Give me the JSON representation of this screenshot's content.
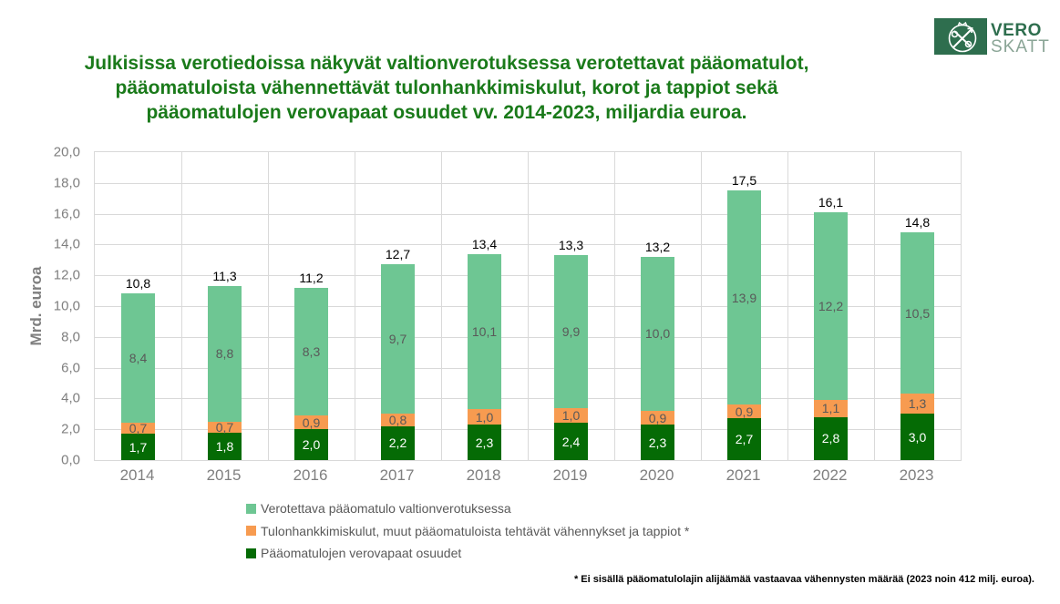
{
  "header": {
    "title_lines": [
      "Julkisissa verotiedoissa näkyvät valtionverotuksessa verotettavat pääomatulot,",
      "pääomatuloista vähennettävät tulonhankkimiskulut, korot ja tappiot sekä",
      "pääomatulojen verovapaat osuudet vv. 2014-2023, miljardia euroa."
    ],
    "title_color": "#1A7A1A",
    "logo": {
      "text_top": "VERO",
      "text_bottom": "SKATT",
      "box_color": "#2E6E4E"
    }
  },
  "chart_data": {
    "type": "bar",
    "stacked": true,
    "ylabel": "Mrd. euroa",
    "ylim": [
      0,
      20
    ],
    "ytick_step": 2,
    "ytick_labels": [
      "0,0",
      "2,0",
      "4,0",
      "6,0",
      "8,0",
      "10,0",
      "12,0",
      "14,0",
      "16,0",
      "18,0",
      "20,0"
    ],
    "categories": [
      "2014",
      "2015",
      "2016",
      "2017",
      "2018",
      "2019",
      "2020",
      "2021",
      "2022",
      "2023"
    ],
    "series": [
      {
        "name": "Verotettava pääomatulo valtionverotuksessa",
        "color": "#6EC693",
        "label_color": "#595959",
        "values": [
          8.4,
          8.8,
          8.3,
          9.7,
          10.1,
          9.9,
          10.0,
          13.9,
          12.2,
          10.5
        ],
        "labels": [
          "8,4",
          "8,8",
          "8,3",
          "9,7",
          "10,1",
          "9,9",
          "10,0",
          "13,9",
          "12,2",
          "10,5"
        ]
      },
      {
        "name": "Tulonhankkimiskulut, muut pääomatuloista tehtävät vähennykset ja tappiot *",
        "color": "#F79B50",
        "label_color": "#595959",
        "values": [
          0.7,
          0.7,
          0.9,
          0.8,
          1.0,
          1.0,
          0.9,
          0.9,
          1.1,
          1.3
        ],
        "labels": [
          "0,7",
          "0,7",
          "0,9",
          "0,8",
          "1,0",
          "1,0",
          "0,9",
          "0,9",
          "1,1",
          "1,3"
        ]
      },
      {
        "name": "Pääomatulojen verovapaat osuudet",
        "color": "#056B05",
        "label_color": "#FFFFFF",
        "values": [
          1.7,
          1.8,
          2.0,
          2.2,
          2.3,
          2.4,
          2.3,
          2.7,
          2.8,
          3.0
        ],
        "labels": [
          "1,7",
          "1,8",
          "2,0",
          "2,2",
          "2,3",
          "2,4",
          "2,3",
          "2,7",
          "2,8",
          "3,0"
        ]
      }
    ],
    "stack_order_bottom_to_top": [
      2,
      1,
      0
    ],
    "totals": [
      10.8,
      11.3,
      11.2,
      12.7,
      13.4,
      13.3,
      13.2,
      17.5,
      16.1,
      14.8
    ],
    "total_labels": [
      "10,8",
      "11,3",
      "11,2",
      "12,7",
      "13,4",
      "13,3",
      "13,2",
      "17,5",
      "16,1",
      "14,8"
    ],
    "grid": true,
    "legend_position": "bottom-left"
  },
  "footnote": "* Ei sisällä pääomatulolajin alijäämää vastaavaa vähennysten määrää (2023 noin 412 milj. euroa)."
}
